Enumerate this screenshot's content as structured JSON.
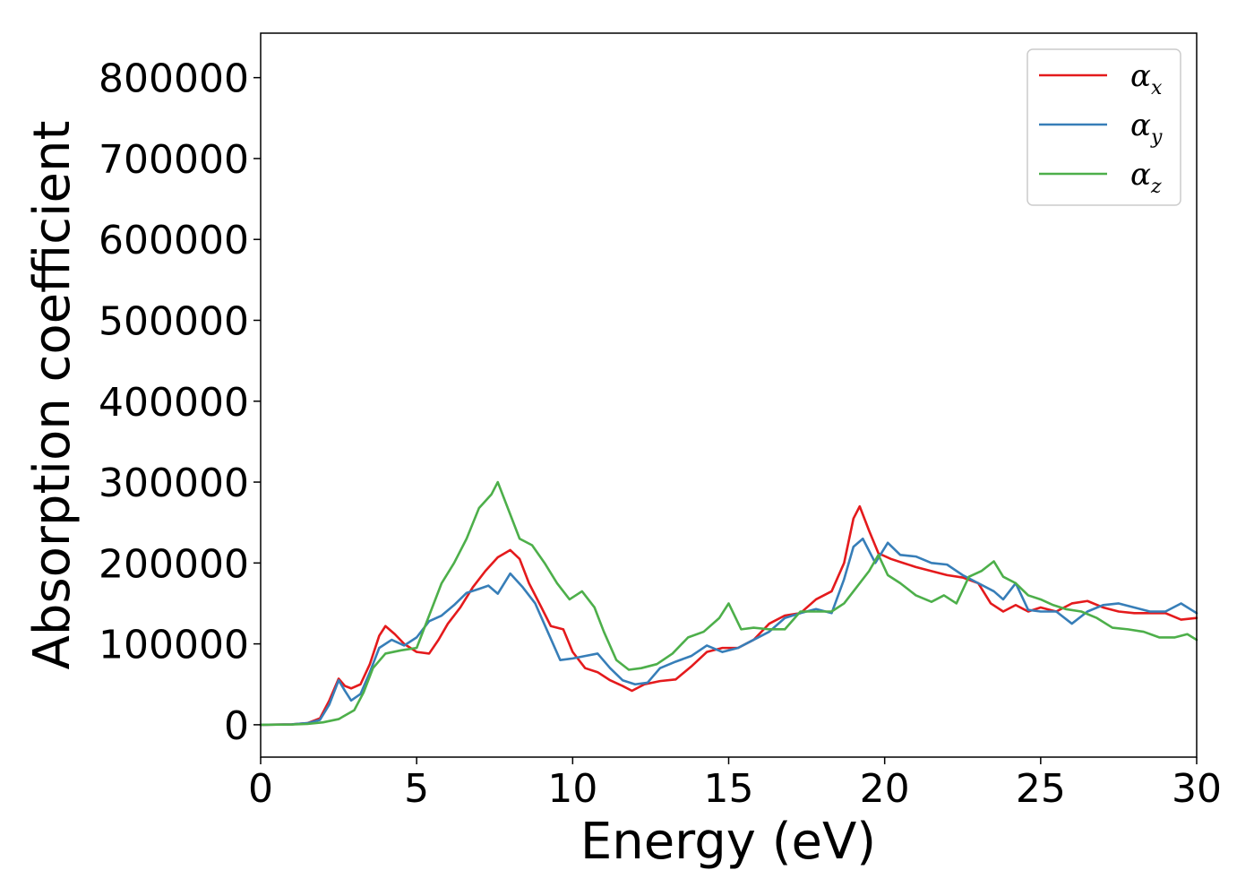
{
  "chart_data": {
    "type": "line",
    "title": "",
    "xlabel": "Energy (eV)",
    "ylabel": "Absorption coefficient",
    "xlim": [
      0,
      30
    ],
    "ylim": [
      -40000,
      855000
    ],
    "xticks": [
      0,
      5,
      10,
      15,
      20,
      25,
      30
    ],
    "yticks": [
      0,
      100000,
      200000,
      300000,
      400000,
      500000,
      600000,
      700000,
      800000
    ],
    "grid": false,
    "legend_position": "top-right",
    "series": [
      {
        "name": "αx",
        "symbol": "α",
        "subscript": "x",
        "color": "#e41a1c",
        "points": [
          [
            0,
            0
          ],
          [
            1,
            500
          ],
          [
            1.5,
            2000
          ],
          [
            1.9,
            8000
          ],
          [
            2.2,
            30000
          ],
          [
            2.5,
            57000
          ],
          [
            2.7,
            48000
          ],
          [
            2.9,
            45000
          ],
          [
            3.2,
            50000
          ],
          [
            3.5,
            75000
          ],
          [
            3.8,
            110000
          ],
          [
            4.0,
            122000
          ],
          [
            4.3,
            112000
          ],
          [
            4.6,
            100000
          ],
          [
            5.0,
            90000
          ],
          [
            5.4,
            88000
          ],
          [
            5.7,
            105000
          ],
          [
            6.0,
            125000
          ],
          [
            6.4,
            145000
          ],
          [
            6.8,
            170000
          ],
          [
            7.2,
            190000
          ],
          [
            7.6,
            207000
          ],
          [
            8.0,
            216000
          ],
          [
            8.3,
            205000
          ],
          [
            8.6,
            175000
          ],
          [
            9.0,
            145000
          ],
          [
            9.3,
            122000
          ],
          [
            9.7,
            118000
          ],
          [
            10.0,
            90000
          ],
          [
            10.4,
            70000
          ],
          [
            10.8,
            65000
          ],
          [
            11.2,
            55000
          ],
          [
            11.6,
            48000
          ],
          [
            11.9,
            42000
          ],
          [
            12.3,
            50000
          ],
          [
            12.8,
            54000
          ],
          [
            13.3,
            56000
          ],
          [
            13.8,
            72000
          ],
          [
            14.3,
            90000
          ],
          [
            14.8,
            95000
          ],
          [
            15.3,
            95000
          ],
          [
            15.8,
            105000
          ],
          [
            16.3,
            125000
          ],
          [
            16.8,
            135000
          ],
          [
            17.3,
            138000
          ],
          [
            17.8,
            155000
          ],
          [
            18.3,
            165000
          ],
          [
            18.7,
            200000
          ],
          [
            19.0,
            255000
          ],
          [
            19.2,
            270000
          ],
          [
            19.5,
            240000
          ],
          [
            19.8,
            212000
          ],
          [
            20.2,
            205000
          ],
          [
            20.6,
            200000
          ],
          [
            21.0,
            195000
          ],
          [
            21.5,
            190000
          ],
          [
            22.0,
            185000
          ],
          [
            22.5,
            182000
          ],
          [
            23.0,
            175000
          ],
          [
            23.4,
            150000
          ],
          [
            23.8,
            140000
          ],
          [
            24.2,
            148000
          ],
          [
            24.6,
            140000
          ],
          [
            25.0,
            145000
          ],
          [
            25.5,
            140000
          ],
          [
            26.0,
            150000
          ],
          [
            26.5,
            153000
          ],
          [
            27.0,
            145000
          ],
          [
            27.5,
            140000
          ],
          [
            28.0,
            138000
          ],
          [
            28.5,
            138000
          ],
          [
            29.0,
            138000
          ],
          [
            29.5,
            130000
          ],
          [
            30.0,
            132000
          ]
        ]
      },
      {
        "name": "αy",
        "symbol": "α",
        "subscript": "y",
        "color": "#377eb8",
        "points": [
          [
            0,
            0
          ],
          [
            1,
            500
          ],
          [
            1.5,
            2000
          ],
          [
            1.9,
            6000
          ],
          [
            2.2,
            25000
          ],
          [
            2.5,
            55000
          ],
          [
            2.7,
            42000
          ],
          [
            2.9,
            30000
          ],
          [
            3.2,
            38000
          ],
          [
            3.5,
            65000
          ],
          [
            3.8,
            95000
          ],
          [
            4.2,
            105000
          ],
          [
            4.6,
            98000
          ],
          [
            5.0,
            108000
          ],
          [
            5.4,
            128000
          ],
          [
            5.8,
            135000
          ],
          [
            6.2,
            148000
          ],
          [
            6.6,
            163000
          ],
          [
            7.0,
            168000
          ],
          [
            7.3,
            172000
          ],
          [
            7.6,
            162000
          ],
          [
            8.0,
            187000
          ],
          [
            8.4,
            170000
          ],
          [
            8.8,
            150000
          ],
          [
            9.2,
            115000
          ],
          [
            9.6,
            80000
          ],
          [
            10.0,
            82000
          ],
          [
            10.4,
            85000
          ],
          [
            10.8,
            88000
          ],
          [
            11.2,
            70000
          ],
          [
            11.6,
            55000
          ],
          [
            12.0,
            50000
          ],
          [
            12.4,
            52000
          ],
          [
            12.8,
            70000
          ],
          [
            13.3,
            78000
          ],
          [
            13.8,
            85000
          ],
          [
            14.3,
            98000
          ],
          [
            14.8,
            90000
          ],
          [
            15.3,
            95000
          ],
          [
            15.8,
            105000
          ],
          [
            16.3,
            115000
          ],
          [
            16.8,
            132000
          ],
          [
            17.3,
            138000
          ],
          [
            17.8,
            143000
          ],
          [
            18.3,
            138000
          ],
          [
            18.7,
            180000
          ],
          [
            19.0,
            220000
          ],
          [
            19.3,
            230000
          ],
          [
            19.7,
            200000
          ],
          [
            20.1,
            225000
          ],
          [
            20.5,
            210000
          ],
          [
            21.0,
            208000
          ],
          [
            21.5,
            200000
          ],
          [
            22.0,
            198000
          ],
          [
            22.5,
            185000
          ],
          [
            23.0,
            175000
          ],
          [
            23.5,
            165000
          ],
          [
            23.8,
            155000
          ],
          [
            24.2,
            175000
          ],
          [
            24.6,
            142000
          ],
          [
            25.0,
            140000
          ],
          [
            25.5,
            140000
          ],
          [
            26.0,
            125000
          ],
          [
            26.5,
            140000
          ],
          [
            27.0,
            148000
          ],
          [
            27.5,
            150000
          ],
          [
            28.0,
            145000
          ],
          [
            28.5,
            140000
          ],
          [
            29.0,
            140000
          ],
          [
            29.5,
            150000
          ],
          [
            30.0,
            138000
          ]
        ]
      },
      {
        "name": "αz",
        "symbol": "α",
        "subscript": "z",
        "color": "#4daf4a",
        "points": [
          [
            0,
            0
          ],
          [
            1,
            300
          ],
          [
            1.5,
            1000
          ],
          [
            2.0,
            3000
          ],
          [
            2.5,
            7000
          ],
          [
            3.0,
            18000
          ],
          [
            3.3,
            40000
          ],
          [
            3.6,
            70000
          ],
          [
            4.0,
            88000
          ],
          [
            4.5,
            92000
          ],
          [
            5.0,
            95000
          ],
          [
            5.4,
            135000
          ],
          [
            5.8,
            175000
          ],
          [
            6.2,
            200000
          ],
          [
            6.6,
            230000
          ],
          [
            7.0,
            268000
          ],
          [
            7.4,
            285000
          ],
          [
            7.6,
            300000
          ],
          [
            7.9,
            270000
          ],
          [
            8.3,
            230000
          ],
          [
            8.7,
            222000
          ],
          [
            9.1,
            200000
          ],
          [
            9.5,
            175000
          ],
          [
            9.9,
            155000
          ],
          [
            10.3,
            165000
          ],
          [
            10.7,
            145000
          ],
          [
            11.0,
            115000
          ],
          [
            11.4,
            80000
          ],
          [
            11.8,
            68000
          ],
          [
            12.2,
            70000
          ],
          [
            12.7,
            75000
          ],
          [
            13.2,
            88000
          ],
          [
            13.7,
            108000
          ],
          [
            14.2,
            115000
          ],
          [
            14.7,
            132000
          ],
          [
            15.0,
            150000
          ],
          [
            15.4,
            118000
          ],
          [
            15.8,
            120000
          ],
          [
            16.3,
            118000
          ],
          [
            16.8,
            118000
          ],
          [
            17.3,
            140000
          ],
          [
            17.8,
            140000
          ],
          [
            18.3,
            140000
          ],
          [
            18.7,
            150000
          ],
          [
            19.1,
            170000
          ],
          [
            19.5,
            190000
          ],
          [
            19.8,
            210000
          ],
          [
            20.1,
            185000
          ],
          [
            20.5,
            175000
          ],
          [
            21.0,
            160000
          ],
          [
            21.5,
            152000
          ],
          [
            21.9,
            160000
          ],
          [
            22.3,
            150000
          ],
          [
            22.7,
            183000
          ],
          [
            23.1,
            190000
          ],
          [
            23.5,
            202000
          ],
          [
            23.8,
            183000
          ],
          [
            24.2,
            175000
          ],
          [
            24.6,
            160000
          ],
          [
            25.0,
            155000
          ],
          [
            25.4,
            148000
          ],
          [
            25.8,
            143000
          ],
          [
            26.3,
            140000
          ],
          [
            26.8,
            132000
          ],
          [
            27.3,
            120000
          ],
          [
            27.8,
            118000
          ],
          [
            28.3,
            115000
          ],
          [
            28.8,
            108000
          ],
          [
            29.3,
            108000
          ],
          [
            29.7,
            112000
          ],
          [
            30.0,
            105000
          ]
        ]
      }
    ]
  }
}
